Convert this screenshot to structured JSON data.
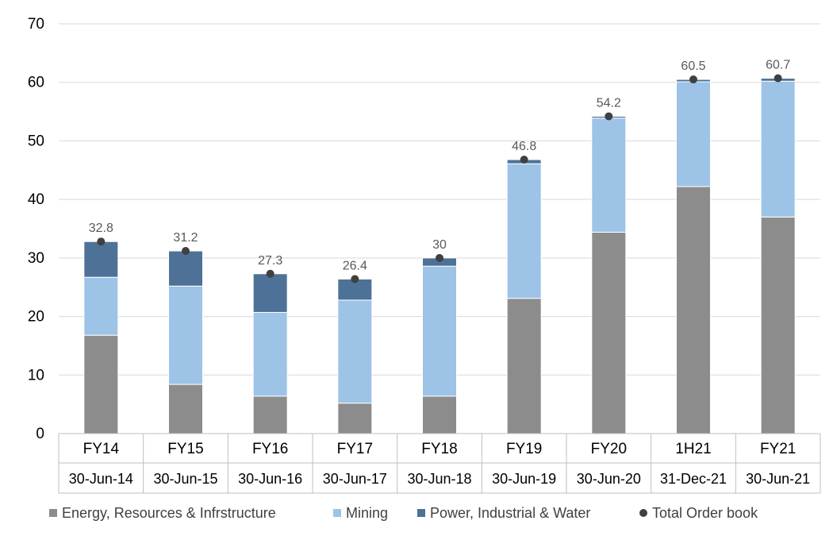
{
  "chart_data": {
    "type": "bar",
    "stacked": true,
    "categories": [
      "FY14",
      "FY15",
      "FY16",
      "FY17",
      "FY18",
      "FY19",
      "FY20",
      "1H21",
      "FY21"
    ],
    "category_dates": [
      "30-Jun-14",
      "30-Jun-15",
      "30-Jun-16",
      "30-Jun-17",
      "30-Jun-18",
      "30-Jun-19",
      "30-Jun-20",
      "31-Dec-21",
      "30-Jun-21"
    ],
    "series": [
      {
        "name": "Energy, Resources & Infrstructure",
        "color": "#8c8c8c",
        "values": [
          16.8,
          8.4,
          6.4,
          5.2,
          6.4,
          23.1,
          34.4,
          42.2,
          37.0
        ]
      },
      {
        "name": "Mining",
        "color": "#9dc3e6",
        "values": [
          9.9,
          16.8,
          14.3,
          17.6,
          22.2,
          23.0,
          19.5,
          17.9,
          23.2
        ]
      },
      {
        "name": "Power, Industrial & Water",
        "color": "#4e7197",
        "values": [
          6.1,
          6.0,
          6.6,
          3.6,
          1.4,
          0.7,
          0.3,
          0.4,
          0.5
        ]
      }
    ],
    "total": {
      "name": "Total Order book",
      "color": "#404040",
      "values": [
        32.8,
        31.2,
        27.3,
        26.4,
        30,
        46.8,
        54.2,
        60.5,
        60.7
      ]
    },
    "ylim": [
      0,
      70
    ],
    "yticks": [
      0,
      10,
      20,
      30,
      40,
      50,
      60,
      70
    ],
    "grid": true,
    "legend": "bottom",
    "title": "",
    "xlabel": "",
    "ylabel": ""
  }
}
